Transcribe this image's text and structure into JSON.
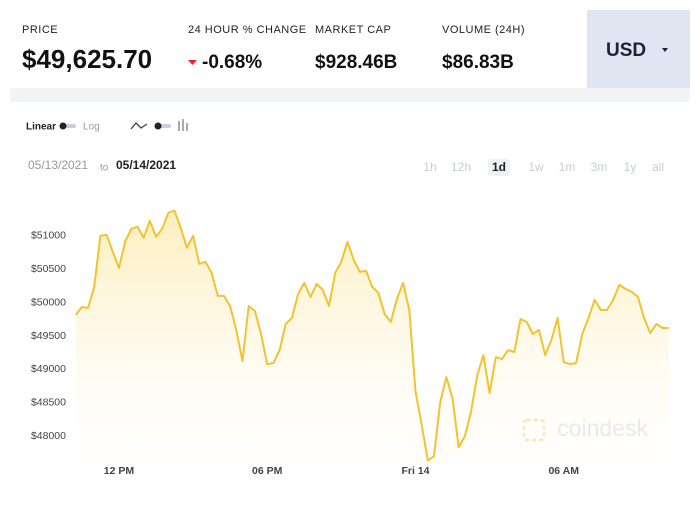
{
  "currency": "USD",
  "stats": [
    {
      "label": "PRICE",
      "value": "$49,625.70"
    },
    {
      "label": "24 HOUR % CHANGE",
      "value": "-0.68%"
    },
    {
      "label": "MARKET CAP",
      "value": "$928.46B"
    },
    {
      "label": "VOLUME (24H)",
      "value": "$86.83B"
    }
  ],
  "scale_options": [
    "Linear",
    "Log"
  ],
  "date_from": "05/13/2021",
  "date_sep": "to",
  "date_to": "05/14/2021",
  "ranges": [
    "1h",
    "12h",
    "1d",
    "1w",
    "1m",
    "3m",
    "1y",
    "all"
  ],
  "selected_range": 2,
  "watermark": "coindesk",
  "chart_data": {
    "type": "line",
    "x": [
      10.25,
      10.5,
      10.75,
      11,
      11.25,
      11.5,
      11.75,
      12,
      12.25,
      12.5,
      12.75,
      13,
      13.25,
      13.5,
      13.75,
      14,
      14.25,
      14.5,
      14.75,
      15,
      15.25,
      15.5,
      15.75,
      16,
      16.25,
      16.5,
      16.75,
      17,
      17.25,
      17.5,
      17.75,
      18,
      18.25,
      18.5,
      18.75,
      19,
      19.25,
      19.5,
      19.75,
      20,
      20.25,
      20.5,
      20.75,
      21,
      21.25,
      21.5,
      21.75,
      22,
      22.25,
      22.5,
      22.75,
      23,
      23.25,
      23.5,
      23.75,
      24,
      24.25,
      24.5,
      24.75,
      25,
      25.25,
      25.5,
      25.75,
      26,
      26.25,
      26.5,
      26.75,
      27,
      27.25,
      27.5,
      27.75,
      28,
      28.25,
      28.5,
      28.75,
      29,
      29.25,
      29.5,
      29.75,
      30,
      30.25,
      30.5,
      30.75,
      31,
      31.25,
      31.5,
      31.75,
      32,
      32.25,
      32.5,
      32.75,
      33,
      33.25,
      33.5,
      33.75,
      34,
      34.25
    ],
    "series": [
      {
        "color": "#f2c230",
        "values": [
          49815,
          49935,
          49920,
          50235,
          51000,
          51015,
          50760,
          50520,
          50910,
          51105,
          51135,
          50970,
          51225,
          50985,
          51105,
          51345,
          51375,
          51120,
          50820,
          51000,
          50580,
          50610,
          50445,
          50100,
          50100,
          49950,
          49590,
          49125,
          49950,
          49875,
          49530,
          49080,
          49095,
          49290,
          49680,
          49770,
          50130,
          50295,
          50085,
          50280,
          50190,
          49950,
          50445,
          50610,
          50910,
          50640,
          50460,
          50475,
          50235,
          50145,
          49830,
          49710,
          50055,
          50295,
          49890,
          48675,
          48165,
          47640,
          47700,
          48510,
          48885,
          48570,
          47835,
          48000,
          48375,
          48915,
          49215,
          48645,
          49185,
          49155,
          49290,
          49260,
          49755,
          49710,
          49530,
          49590,
          49215,
          49440,
          49770,
          49110,
          49080,
          49095,
          49530,
          49770,
          50040,
          49890,
          49890,
          50040,
          50265,
          50205,
          50160,
          50085,
          49770,
          49545,
          49680,
          49620,
          49620
        ]
      }
    ],
    "xlim": [
      10.1,
      34.3
    ],
    "xticks": [
      {
        "value": 12,
        "label": "12 PM"
      },
      {
        "value": 18,
        "label": "06 PM"
      },
      {
        "value": 24,
        "label": "Fri 14"
      },
      {
        "value": 30,
        "label": "06 AM"
      }
    ],
    "ylim": [
      47600,
      51700
    ],
    "yticks": [
      {
        "value": 48000,
        "label": "$48000"
      },
      {
        "value": 48500,
        "label": "$48500"
      },
      {
        "value": 49000,
        "label": "$49000"
      },
      {
        "value": 49500,
        "label": "$49500"
      },
      {
        "value": 50000,
        "label": "$50000"
      },
      {
        "value": 50500,
        "label": "$50500"
      },
      {
        "value": 51000,
        "label": "$51000"
      }
    ]
  }
}
